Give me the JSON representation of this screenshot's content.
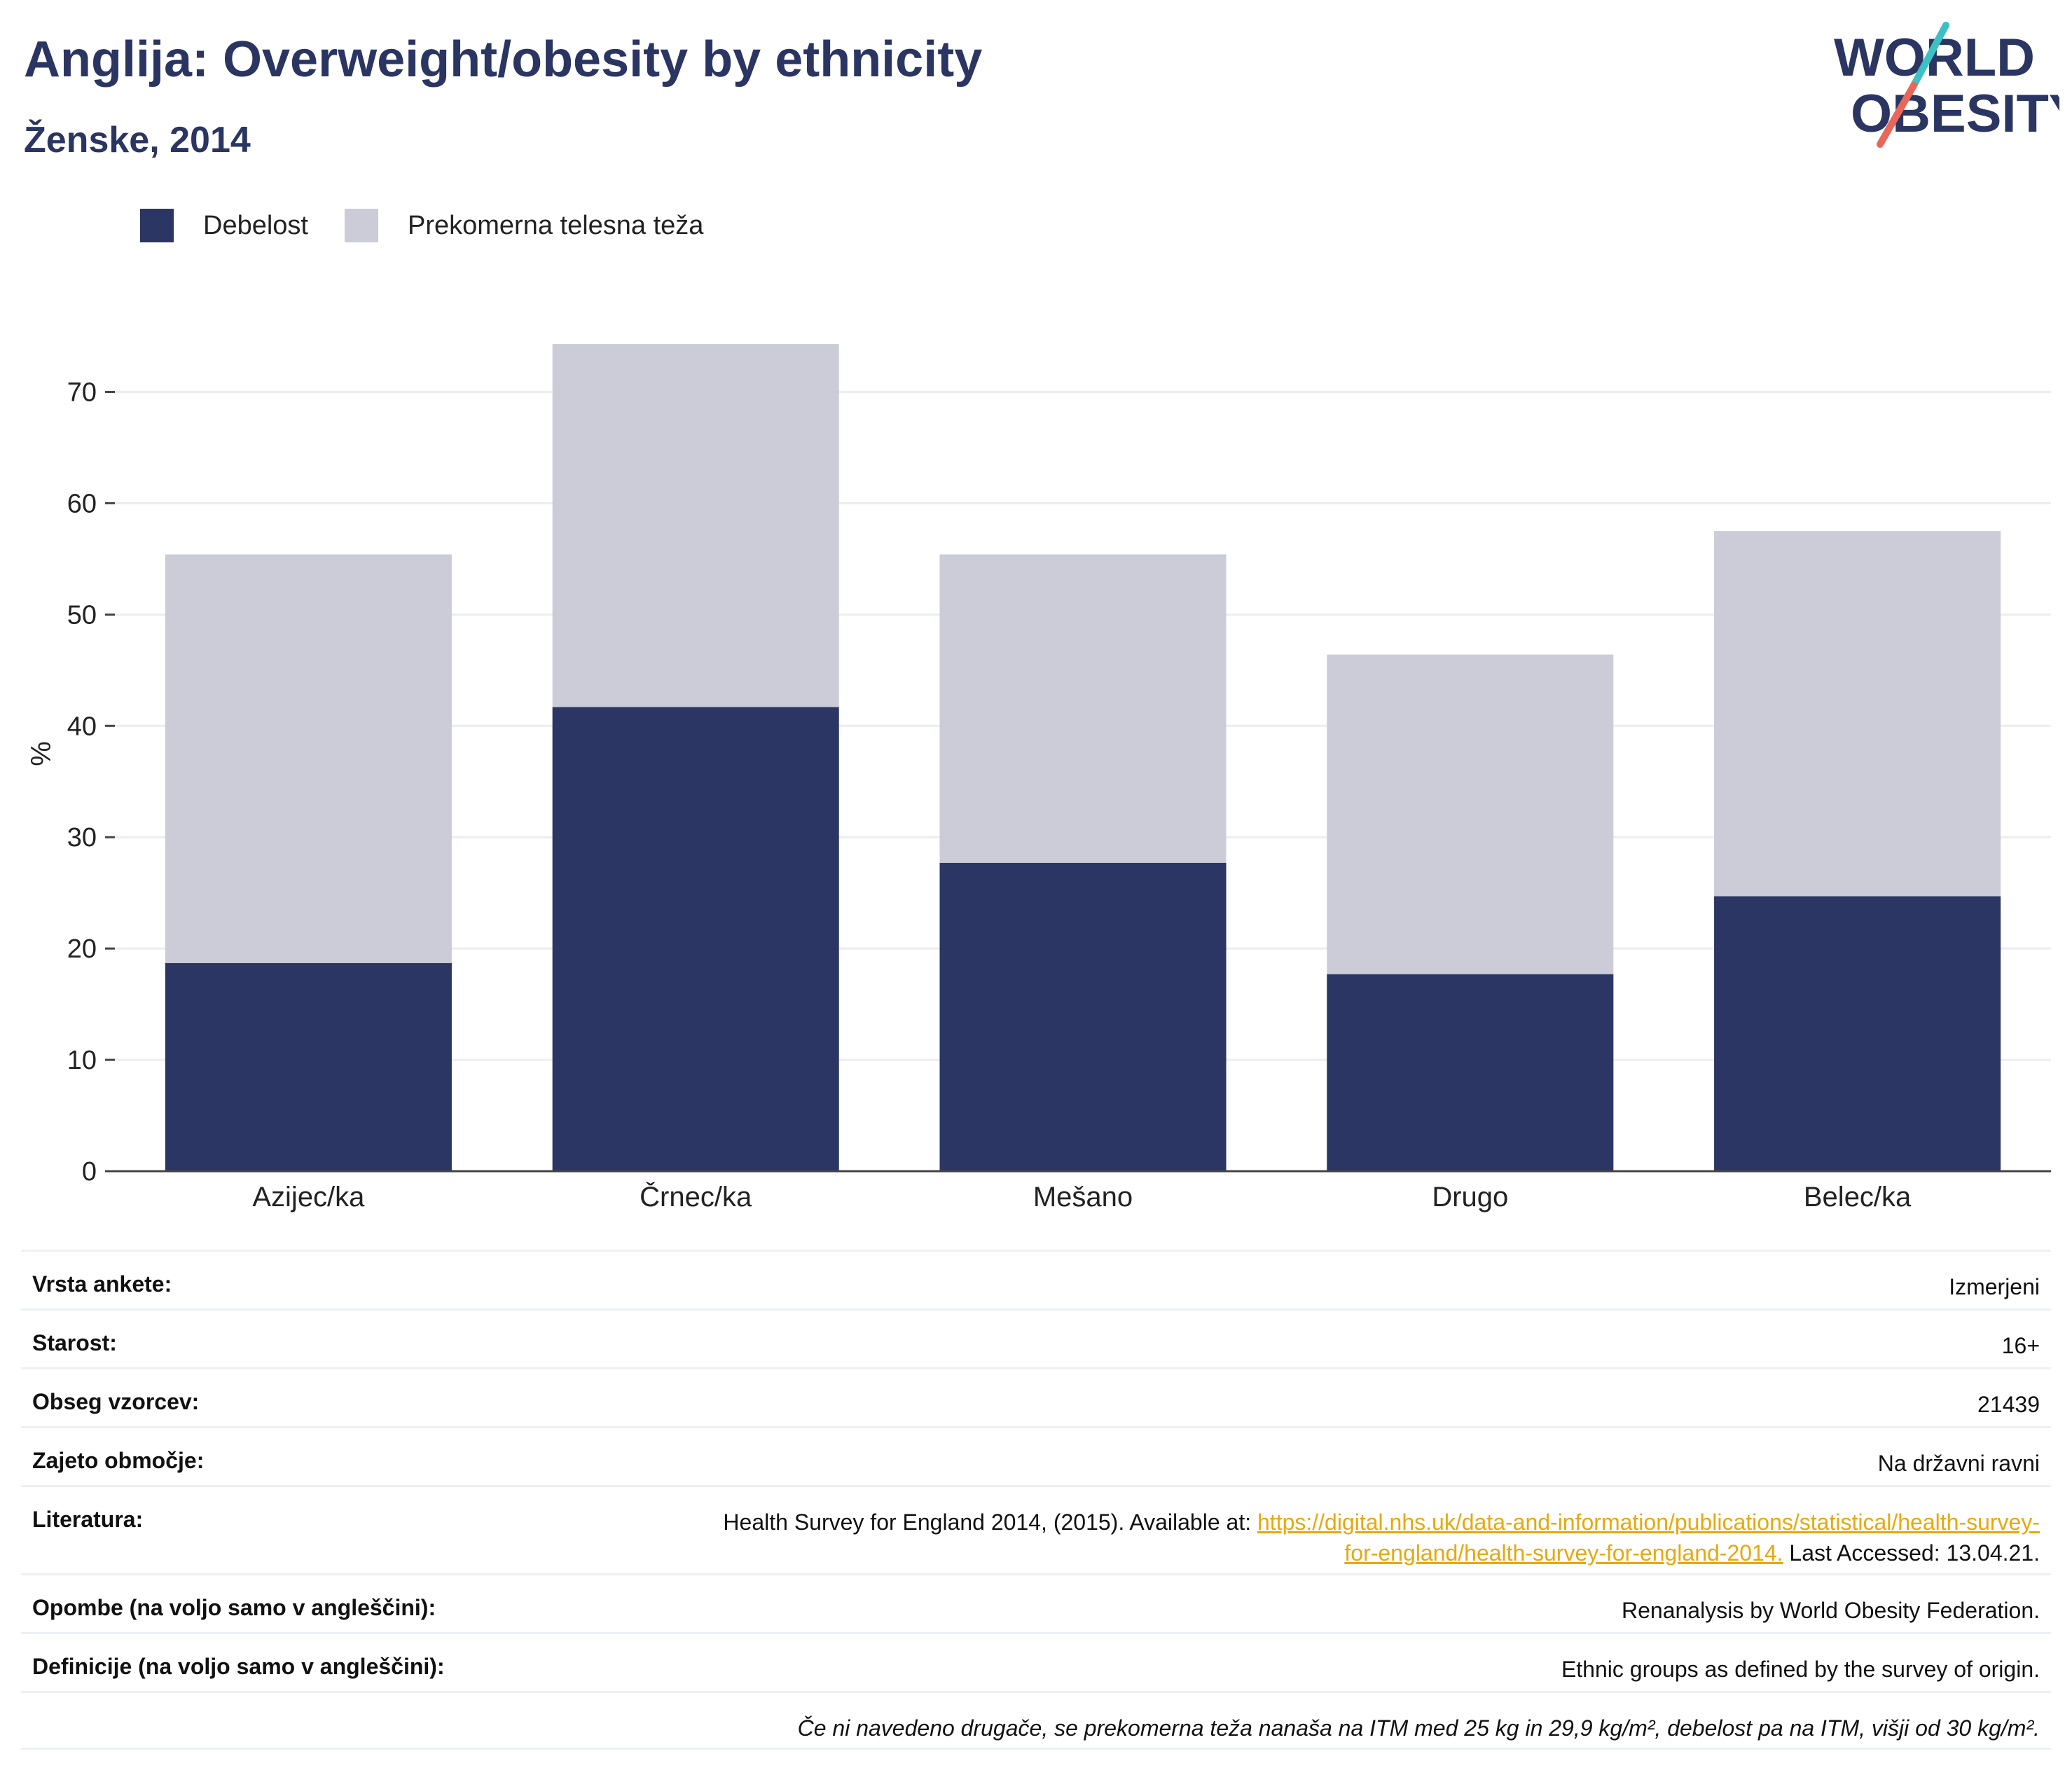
{
  "header": {
    "title": "Anglija: Overweight/obesity by ethnicity",
    "subtitle": "Ženske, 2014"
  },
  "logo": {
    "line1": "WORLD",
    "line2": "OBESITY",
    "icon": "world-obesity-logo"
  },
  "colors": {
    "obesity": "#2b3664",
    "overweight": "#cbccd7",
    "title": "#2a3561",
    "link": "#e8a80c",
    "logo_teal": "#3cc0c3",
    "logo_red": "#e8675a"
  },
  "legend": [
    {
      "label": "Debelost",
      "color": "#2b3664"
    },
    {
      "label": "Prekomerna telesna teža",
      "color": "#cbccd7"
    }
  ],
  "chart_data": {
    "type": "bar",
    "stacked": true,
    "categories": [
      "Azijec/ka",
      "Črnec/ka",
      "Mešano",
      "Drugo",
      "Belec/ka"
    ],
    "series": [
      {
        "name": "Debelost",
        "values": [
          18.7,
          41.7,
          27.7,
          17.7,
          24.7
        ]
      },
      {
        "name": "Prekomerna telesna teža",
        "values": [
          36.7,
          32.6,
          27.7,
          28.7,
          32.8
        ]
      }
    ],
    "ylabel": "%",
    "xlabel": "",
    "ylim": [
      0,
      75
    ],
    "yticks": [
      0,
      10,
      20,
      30,
      40,
      50,
      60,
      70
    ],
    "grid": true,
    "legend_position": "top-left"
  },
  "info_table": [
    {
      "key": "Vrsta ankete:",
      "value": "Izmerjeni"
    },
    {
      "key": "Starost:",
      "value": "16+"
    },
    {
      "key": "Obseg vzorcev:",
      "value": "21439"
    },
    {
      "key": "Zajeto območje:",
      "value": "Na državni ravni"
    }
  ],
  "literature": {
    "key": "Literatura:",
    "prefix": "Health Survey for England 2014, (2015). Available at: ",
    "link_line1": "https://digital.nhs.uk/data-and-information/publications/statistical/health-survey-",
    "link_line2": "for-england/health-survey-for-england-2014.",
    "suffix": " Last Accessed: 13.04.21."
  },
  "info_table_2": [
    {
      "key": "Opombe (na voljo samo v angleščini):",
      "value": "Renanalysis by World Obesity Federation."
    },
    {
      "key": "Definicije (na voljo samo v angleščini):",
      "value": "Ethnic groups as defined by the survey of origin."
    }
  ],
  "footnote": "Če ni navedeno drugače, se prekomerna teža nanaša na ITM med 25 kg in 29,9 kg/m², debelost pa na ITM, višji od 30 kg/m²."
}
